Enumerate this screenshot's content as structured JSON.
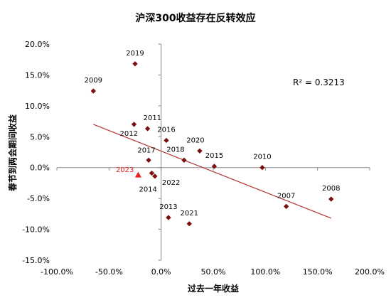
{
  "chart_data": {
    "type": "scatter",
    "title": "沪深300收益存在反转效应",
    "xlabel": "过去一年收益",
    "ylabel": "春节到两会期间收益",
    "xlim": [
      -100,
      200
    ],
    "ylim": [
      -15,
      20
    ],
    "x_ticks": [
      -100,
      -50,
      0,
      50,
      100,
      150,
      200
    ],
    "y_ticks": [
      -15,
      -10,
      -5,
      0,
      5,
      10,
      15,
      20
    ],
    "x_tick_labels": [
      "-100.0%",
      "-50.0%",
      "0.0%",
      "50.0%",
      "100.0%",
      "150.0%",
      "200.0%"
    ],
    "y_tick_labels": [
      "-15.0%",
      "-10.0%",
      "-5.0%",
      "0.0%",
      "5.0%",
      "10.0%",
      "15.0%",
      "20.0%"
    ],
    "points": [
      {
        "label": "2019",
        "x": -25,
        "y": 16.8
      },
      {
        "label": "2009",
        "x": -65,
        "y": 12.4
      },
      {
        "label": "2011",
        "x": -13,
        "y": 6.3
      },
      {
        "label": "2012",
        "x": -26,
        "y": 7.0
      },
      {
        "label": "2016",
        "x": 5,
        "y": 4.4
      },
      {
        "label": "2020",
        "x": 37,
        "y": 2.7
      },
      {
        "label": "2018",
        "x": 22,
        "y": 1.2
      },
      {
        "label": "2015",
        "x": 51,
        "y": 0.2
      },
      {
        "label": "2010",
        "x": 97,
        "y": 0.0
      },
      {
        "label": "2017",
        "x": -12,
        "y": 1.2
      },
      {
        "label": "2022",
        "x": -6,
        "y": -1.4
      },
      {
        "label": "2014",
        "x": -9,
        "y": -0.9
      },
      {
        "label": "2008",
        "x": 163,
        "y": -5.1
      },
      {
        "label": "2007",
        "x": 120,
        "y": -6.3
      },
      {
        "label": "2013",
        "x": 7,
        "y": -8.1
      },
      {
        "label": "2021",
        "x": 27,
        "y": -9.1
      }
    ],
    "highlight_point": {
      "label": "2023",
      "x": -22,
      "y": -1.2,
      "color": "#e8201b"
    },
    "trendline": {
      "x": [
        -65,
        163
      ],
      "y": [
        7.0,
        -8.2
      ],
      "color": "#b03030"
    },
    "annotation": "R² = 0.3213",
    "colors": {
      "marker": "#7b0f0f",
      "axis": "#888888",
      "trend": "#b03030",
      "highlight": "#e8201b"
    }
  }
}
